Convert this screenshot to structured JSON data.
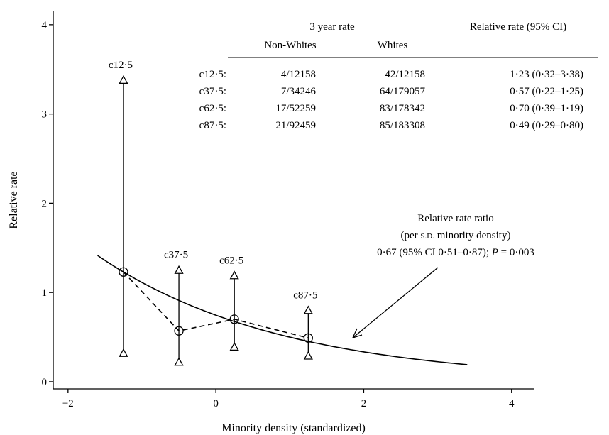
{
  "chart_data": {
    "type": "line",
    "xlabel": "Minority density (standardized)",
    "ylabel": "Relative rate",
    "xlim": [
      -2.2,
      4.3
    ],
    "ylim": [
      -0.08,
      4.15
    ],
    "x_ticks": [
      -2,
      0,
      2,
      4
    ],
    "x_tick_labels": [
      "−2",
      "0",
      "2",
      "4"
    ],
    "y_ticks": [
      0,
      1,
      2,
      3,
      4
    ],
    "y_tick_labels": [
      "0",
      "1",
      "2",
      "3",
      "4"
    ],
    "grid": false,
    "series": [
      {
        "style": "dashed-circles",
        "points": [
          {
            "label": "c12·5",
            "x": -1.25,
            "y": 1.23,
            "lower": 0.32,
            "upper": 3.38
          },
          {
            "label": "c37·5",
            "x": -0.5,
            "y": 0.57,
            "lower": 0.22,
            "upper": 1.25
          },
          {
            "label": "c62·5",
            "x": 0.25,
            "y": 0.7,
            "lower": 0.39,
            "upper": 1.19
          },
          {
            "label": "c87·5",
            "x": 1.25,
            "y": 0.49,
            "lower": 0.29,
            "upper": 0.8
          }
        ]
      },
      {
        "style": "solid-fitted",
        "x_range": [
          -1.6,
          3.4
        ],
        "base_rate": 0.67,
        "anchor": {
          "x": -1.25,
          "y": 1.23
        }
      }
    ],
    "table": {
      "header_group": "3 year rate",
      "header_rr": "Relative rate (95% CI)",
      "col_nonwhites": "Non-Whites",
      "col_whites": "Whites",
      "rows": [
        {
          "label": "c12·5:",
          "nonwhites": "4/12158",
          "whites": "42/12158",
          "rr": "1·23 (0·32–3·38)"
        },
        {
          "label": "c37·5:",
          "nonwhites": "7/34246",
          "whites": "64/179057",
          "rr": "0·57 (0·22–1·25)"
        },
        {
          "label": "c62·5:",
          "nonwhites": "17/52259",
          "whites": "83/178342",
          "rr": "0·70 (0·39–1·19)"
        },
        {
          "label": "c87·5:",
          "nonwhites": "21/92459",
          "whites": "85/183308",
          "rr": "0·49 (0·29–0·80)"
        }
      ]
    },
    "annotation": {
      "line1": "Relative rate ratio",
      "line2_open": "(per ",
      "line2_sd": "S.D.",
      "line2_close": " minority density)",
      "line3_prefix": "0·67 (95% CI 0·51–0·87); ",
      "line3_p": "P",
      "line3_suffix": " = 0·003"
    }
  }
}
